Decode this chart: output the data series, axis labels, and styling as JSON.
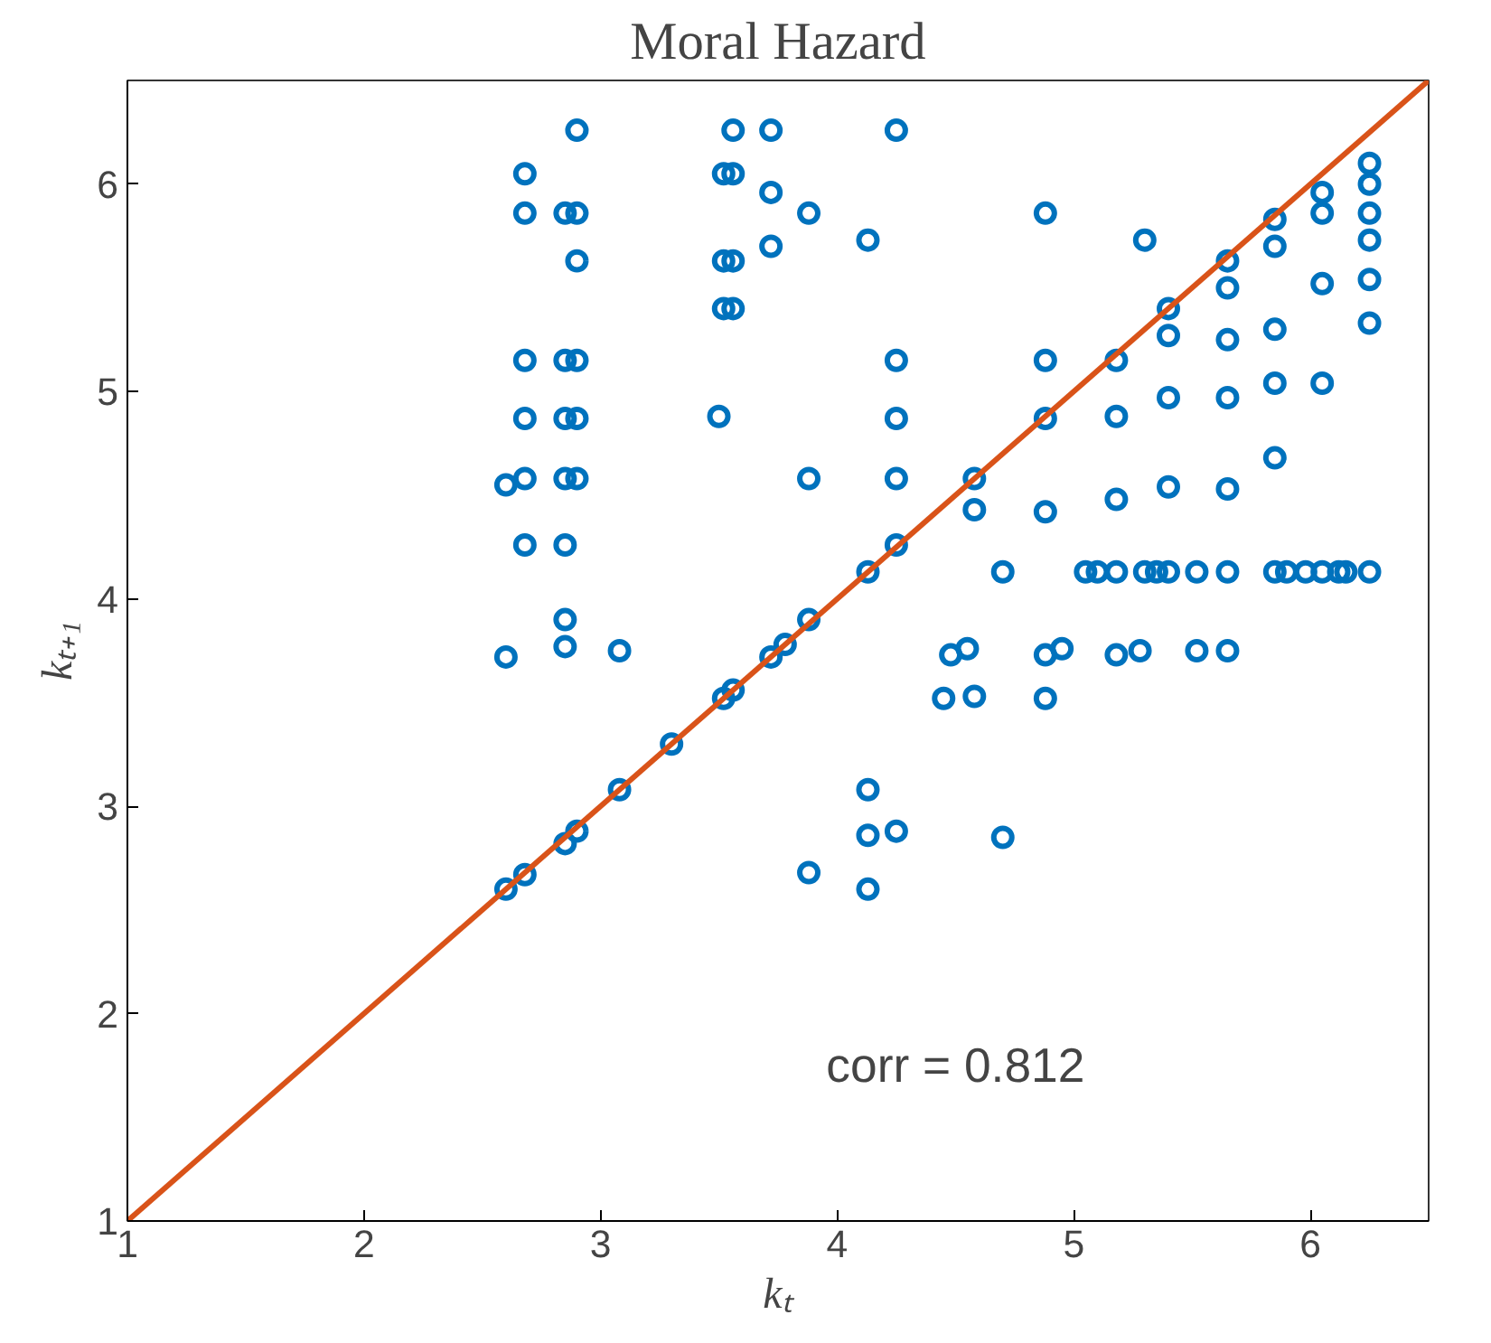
{
  "chart_data": {
    "type": "scatter",
    "title": "Moral Hazard",
    "xlabel": "kₜ",
    "ylabel": "kₜ₊₁",
    "xlim": [
      1,
      6.5
    ],
    "ylim": [
      1,
      6.5
    ],
    "xticks": [
      1,
      2,
      3,
      4,
      5,
      6
    ],
    "yticks": [
      1,
      2,
      3,
      4,
      5,
      6
    ],
    "grid": false,
    "annotations": [
      "corr = 0.812"
    ],
    "series": [
      {
        "marker": "circle",
        "color": "#0072bd",
        "x": [
          2.6,
          2.6,
          2.6,
          2.68,
          2.68,
          2.68,
          2.68,
          2.68,
          2.68,
          2.68,
          2.85,
          2.85,
          2.85,
          2.85,
          2.85,
          2.85,
          2.85,
          2.85,
          2.9,
          2.9,
          2.9,
          2.9,
          2.9,
          2.9,
          2.9,
          3.08,
          3.08,
          3.3,
          3.52,
          3.52,
          3.52,
          3.5,
          3.52,
          3.56,
          3.56,
          3.56,
          3.56,
          3.56,
          3.72,
          3.72,
          3.72,
          3.72,
          3.78,
          3.88,
          3.88,
          3.88,
          3.88,
          4.13,
          4.13,
          4.13,
          4.13,
          4.13,
          4.25,
          4.25,
          4.25,
          4.25,
          4.25,
          4.25,
          4.45,
          4.48,
          4.55,
          4.58,
          4.58,
          4.58,
          4.7,
          4.7,
          4.88,
          4.88,
          4.88,
          4.88,
          4.88,
          4.88,
          4.95,
          5.05,
          5.1,
          5.18,
          5.18,
          5.18,
          5.18,
          5.18,
          5.3,
          5.28,
          5.3,
          5.35,
          5.4,
          5.4,
          5.4,
          5.4,
          5.4,
          5.52,
          5.52,
          5.65,
          5.65,
          5.65,
          5.65,
          5.65,
          5.65,
          5.65,
          5.85,
          5.85,
          5.85,
          5.85,
          5.85,
          5.85,
          5.9,
          5.98,
          6.05,
          6.05,
          6.05,
          6.05,
          6.05,
          6.12,
          6.15,
          6.25,
          6.25,
          6.25,
          6.25,
          6.25,
          6.25,
          6.25
        ],
        "values": [
          4.55,
          3.72,
          2.6,
          6.05,
          5.86,
          5.15,
          4.87,
          4.58,
          4.26,
          2.67,
          5.86,
          5.15,
          4.87,
          4.58,
          4.26,
          3.9,
          3.77,
          2.82,
          6.26,
          5.86,
          5.63,
          5.15,
          4.87,
          4.58,
          2.88,
          3.75,
          3.08,
          3.3,
          6.05,
          5.63,
          5.4,
          4.88,
          3.52,
          6.26,
          6.05,
          5.63,
          5.4,
          3.56,
          6.26,
          5.96,
          5.7,
          3.72,
          3.78,
          5.86,
          4.58,
          3.9,
          2.68,
          5.73,
          4.13,
          3.08,
          2.86,
          2.6,
          6.26,
          5.15,
          4.87,
          4.58,
          4.26,
          2.88,
          3.52,
          3.73,
          3.76,
          4.58,
          4.43,
          3.53,
          4.13,
          2.85,
          5.86,
          5.15,
          4.87,
          4.42,
          3.73,
          3.52,
          3.76,
          4.13,
          4.13,
          5.15,
          4.88,
          4.48,
          4.13,
          3.73,
          5.73,
          3.75,
          4.13,
          4.13,
          5.4,
          5.27,
          4.97,
          4.54,
          4.13,
          3.75,
          4.13,
          5.63,
          5.5,
          5.25,
          4.97,
          4.53,
          4.13,
          3.75,
          5.83,
          5.7,
          5.3,
          5.04,
          4.68,
          4.13,
          4.13,
          4.13,
          5.96,
          5.86,
          5.52,
          5.04,
          4.13,
          4.13,
          4.13,
          6.1,
          6.0,
          5.86,
          5.73,
          5.54,
          5.33,
          4.13
        ]
      },
      {
        "type": "line",
        "marker": "none",
        "color": "#d95319",
        "line_style": "solid",
        "x": [
          1,
          6.5
        ],
        "values": [
          1,
          6.5
        ]
      }
    ]
  }
}
